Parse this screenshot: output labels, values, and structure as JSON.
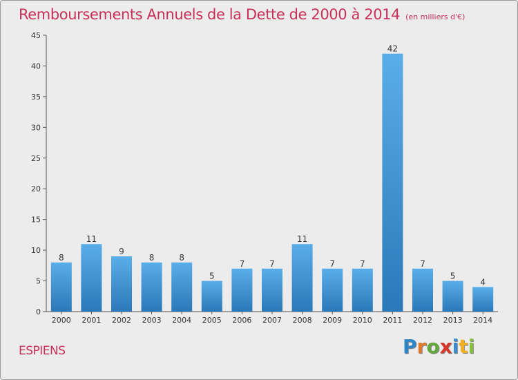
{
  "header": {
    "title": "Remboursements Annuels de la Dette de 2000 à 2014",
    "subtitle": "(en milliers d'€)"
  },
  "footer": {
    "commune": "ESPIENS",
    "brand": "Proxiti",
    "brand_letters": [
      "P",
      "r",
      "o",
      "x",
      "i",
      "t",
      "i"
    ],
    "brand_colors": [
      "#2e86c8",
      "#e0782a",
      "#62a83a",
      "#d8362a",
      "#3a8ad0",
      "#f0b020",
      "#8ac040"
    ]
  },
  "chart_data": {
    "type": "bar",
    "title": "Remboursements Annuels de la Dette de 2000 à 2014",
    "subtitle": "(en milliers d'€)",
    "xlabel": "",
    "ylabel": "",
    "categories": [
      "2000",
      "2001",
      "2002",
      "2003",
      "2004",
      "2005",
      "2006",
      "2007",
      "2008",
      "2009",
      "2010",
      "2011",
      "2012",
      "2013",
      "2014"
    ],
    "values": [
      8,
      11,
      9,
      8,
      8,
      5,
      7,
      7,
      11,
      7,
      7,
      42,
      7,
      5,
      4
    ],
    "data_labels": [
      "8",
      "11",
      "9",
      "8",
      "8",
      "5",
      "7",
      "7",
      "11",
      "7",
      "7",
      "42",
      "7",
      "5",
      "4"
    ],
    "ylim": [
      0,
      45
    ],
    "yticks": [
      0,
      5,
      10,
      15,
      20,
      25,
      30,
      35,
      40,
      45
    ],
    "ytick_labels": [
      "0",
      "5",
      "10",
      "15",
      "20",
      "25",
      "30",
      "35",
      "40",
      "45"
    ],
    "grid": false,
    "legend": "none",
    "colors": {
      "bar_top": "#5aaee8",
      "bar_bottom": "#2a78b8",
      "axis": "#555555",
      "text": "#333333"
    }
  }
}
